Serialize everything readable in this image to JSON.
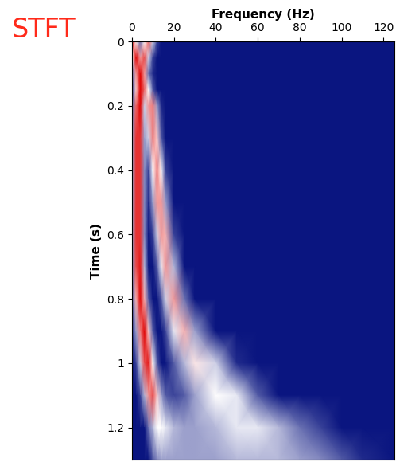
{
  "chart_data": {
    "type": "heatmap",
    "annotation": "STFT",
    "x_label": "Frequency (Hz)",
    "y_label": "Time (s)",
    "colors": [
      "#0a1580",
      "#ffffff",
      "#e00000"
    ],
    "xlim": [
      0,
      125
    ],
    "xticks": [
      0,
      20,
      40,
      60,
      80,
      100,
      120
    ],
    "ylim": [
      0,
      1.3
    ],
    "yticks": [
      0,
      0.2,
      0.4,
      0.6,
      0.8,
      1,
      1.2
    ],
    "frequencies": [
      0,
      2,
      4,
      6,
      8,
      10,
      12,
      14,
      16,
      20,
      25,
      30,
      40,
      50,
      60,
      70,
      80,
      90,
      100,
      110,
      125
    ],
    "times": [
      0,
      0.05,
      0.1,
      0.15,
      0.2,
      0.3,
      0.4,
      0.5,
      0.6,
      0.7,
      0.8,
      0.9,
      1.0,
      1.1,
      1.2,
      1.3
    ],
    "cells": [
      [
        1.0,
        0.5,
        0.2,
        0.5,
        0.8,
        0.4,
        0.1,
        0,
        0,
        0,
        0,
        0,
        0,
        0,
        0,
        0,
        0,
        0,
        0,
        0,
        0
      ],
      [
        0.5,
        1.0,
        0.7,
        0.85,
        0.4,
        0.1,
        0,
        0,
        0,
        0,
        0,
        0,
        0,
        0,
        0,
        0,
        0,
        0,
        0,
        0,
        0
      ],
      [
        0.2,
        0.7,
        1.0,
        0.7,
        0.2,
        0.05,
        0,
        0,
        0,
        0,
        0,
        0,
        0,
        0,
        0,
        0,
        0,
        0,
        0,
        0,
        0
      ],
      [
        0.1,
        0.6,
        1.0,
        0.8,
        0.5,
        0.15,
        0,
        0,
        0,
        0,
        0,
        0,
        0,
        0,
        0,
        0,
        0,
        0,
        0,
        0,
        0
      ],
      [
        0.2,
        0.8,
        1.0,
        0.4,
        0.7,
        0.75,
        0.3,
        0.05,
        0,
        0,
        0,
        0,
        0,
        0,
        0,
        0,
        0,
        0,
        0,
        0,
        0
      ],
      [
        0.3,
        0.9,
        0.9,
        0.3,
        0.4,
        0.75,
        0.6,
        0.15,
        0,
        0,
        0,
        0,
        0,
        0,
        0,
        0,
        0,
        0,
        0,
        0,
        0
      ],
      [
        0.3,
        0.9,
        0.9,
        0.25,
        0.1,
        0.5,
        0.75,
        0.5,
        0.1,
        0,
        0,
        0,
        0,
        0,
        0,
        0,
        0,
        0,
        0,
        0,
        0
      ],
      [
        0.3,
        0.9,
        0.9,
        0.25,
        0.05,
        0.3,
        0.7,
        0.7,
        0.3,
        0,
        0,
        0,
        0,
        0,
        0,
        0,
        0,
        0,
        0,
        0,
        0
      ],
      [
        0.3,
        0.9,
        0.9,
        0.25,
        0,
        0.1,
        0.4,
        0.7,
        0.65,
        0.1,
        0,
        0,
        0,
        0,
        0,
        0,
        0,
        0,
        0,
        0,
        0
      ],
      [
        0.25,
        0.85,
        0.95,
        0.35,
        0,
        0,
        0.15,
        0.45,
        0.7,
        0.35,
        0,
        0,
        0,
        0,
        0,
        0,
        0,
        0,
        0,
        0,
        0
      ],
      [
        0.15,
        0.65,
        1.0,
        0.65,
        0.15,
        0,
        0,
        0.15,
        0.4,
        0.7,
        0.2,
        0,
        0,
        0,
        0,
        0,
        0,
        0,
        0,
        0,
        0
      ],
      [
        0.05,
        0.3,
        0.75,
        1.0,
        0.6,
        0.15,
        0,
        0,
        0.1,
        0.45,
        0.65,
        0.3,
        0,
        0,
        0,
        0,
        0,
        0,
        0,
        0,
        0
      ],
      [
        0,
        0.1,
        0.4,
        0.85,
        0.95,
        0.5,
        0.15,
        0,
        0,
        0.15,
        0.35,
        0.55,
        0.4,
        0.05,
        0,
        0,
        0,
        0,
        0,
        0,
        0
      ],
      [
        0,
        0,
        0.1,
        0.35,
        0.7,
        0.85,
        0.6,
        0.3,
        0.15,
        0.1,
        0.15,
        0.3,
        0.5,
        0.45,
        0.15,
        0,
        0,
        0,
        0,
        0,
        0
      ],
      [
        0,
        0,
        0,
        0,
        0.2,
        0.35,
        0.5,
        0.5,
        0.45,
        0.35,
        0.3,
        0.3,
        0.35,
        0.45,
        0.45,
        0.35,
        0.2,
        0.1,
        0,
        0,
        0
      ],
      [
        0,
        0,
        0,
        0,
        0,
        0.15,
        0.25,
        0.3,
        0.3,
        0.3,
        0.3,
        0.3,
        0.3,
        0.35,
        0.35,
        0.35,
        0.3,
        0.25,
        0.15,
        0.05,
        0
      ]
    ]
  }
}
